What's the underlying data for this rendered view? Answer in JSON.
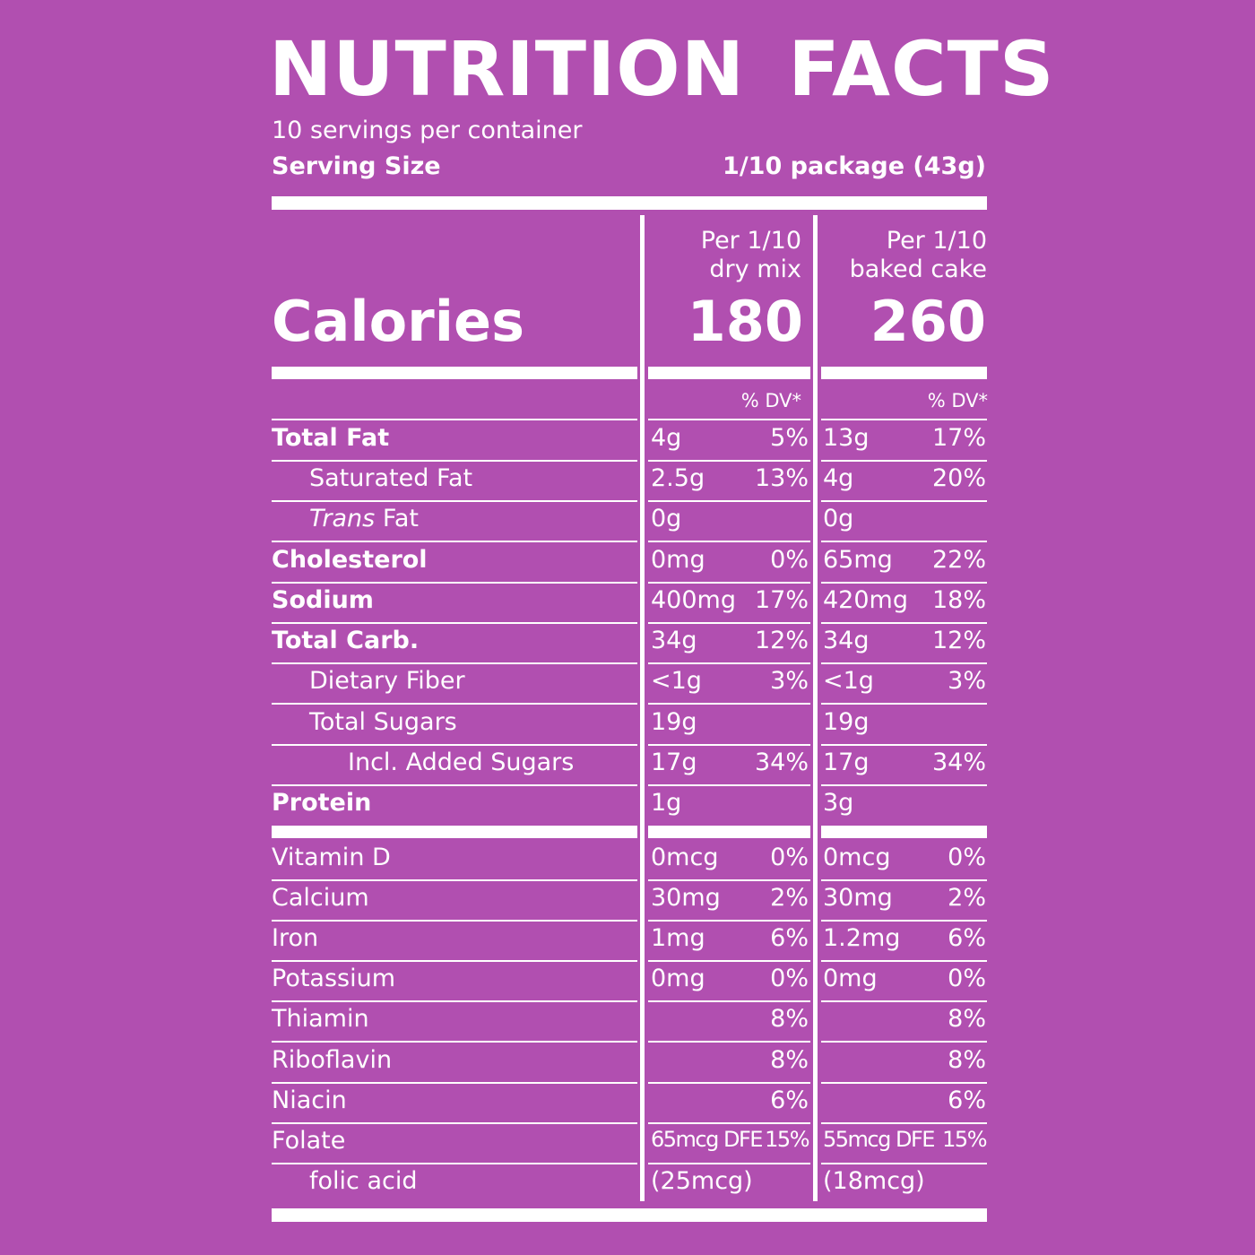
{
  "label": {
    "title": "NUTRITION FACTS",
    "servings": "10 servings per container",
    "serving_size_label": "Serving Size",
    "serving_size_value": "1/10 package (43g)",
    "col1_header_line1": "Per 1/10",
    "col1_header_line2": "dry mix",
    "col2_header_line1": "Per 1/10",
    "col2_header_line2": "baked cake",
    "calories_label": "Calories",
    "calories_dry": "180",
    "calories_baked": "260",
    "dv_header": "% DV*"
  },
  "rows": [
    {
      "name": "Total Fat",
      "dry": "4g",
      "dry_dv": "5%",
      "baked": "13g",
      "baked_dv": "17%"
    },
    {
      "name": "Saturated Fat",
      "dry": "2.5g",
      "dry_dv": "13%",
      "baked": "4g",
      "baked_dv": "20%"
    },
    {
      "name_italic": "Trans",
      "name": " Fat",
      "dry": "0g",
      "dry_dv": "",
      "baked": "0g",
      "baked_dv": ""
    },
    {
      "name": "Cholesterol",
      "dry": "0mg",
      "dry_dv": "0%",
      "baked": "65mg",
      "baked_dv": "22%"
    },
    {
      "name": "Sodium",
      "dry": "400mg",
      "dry_dv": "17%",
      "baked": "420mg",
      "baked_dv": "18%"
    },
    {
      "name": "Total Carb.",
      "dry": "34g",
      "dry_dv": "12%",
      "baked": "34g",
      "baked_dv": "12%"
    },
    {
      "name": "Dietary Fiber",
      "dry": "<1g",
      "dry_dv": "3%",
      "baked": "<1g",
      "baked_dv": "3%"
    },
    {
      "name": "Total Sugars",
      "dry": "19g",
      "dry_dv": "",
      "baked": "19g",
      "baked_dv": ""
    },
    {
      "name": "Incl. Added Sugars",
      "dry": "17g",
      "dry_dv": "34%",
      "baked": "17g",
      "baked_dv": "34%"
    },
    {
      "name": "Protein",
      "dry": "1g",
      "dry_dv": "",
      "baked": "3g",
      "baked_dv": ""
    },
    {
      "name": "Vitamin D",
      "dry": "0mcg",
      "dry_dv": "0%",
      "baked": "0mcg",
      "baked_dv": "0%"
    },
    {
      "name": "Calcium",
      "dry": "30mg",
      "dry_dv": "2%",
      "baked": "30mg",
      "baked_dv": "2%"
    },
    {
      "name": "Iron",
      "dry": "1mg",
      "dry_dv": "6%",
      "baked": "1.2mg",
      "baked_dv": "6%"
    },
    {
      "name": "Potassium",
      "dry": "0mg",
      "dry_dv": "0%",
      "baked": "0mg",
      "baked_dv": "0%"
    },
    {
      "name": "Thiamin",
      "dry": "",
      "dry_dv": "8%",
      "baked": "",
      "baked_dv": "8%"
    },
    {
      "name": "Riboflavin",
      "dry": "",
      "dry_dv": "8%",
      "baked": "",
      "baked_dv": "8%"
    },
    {
      "name": "Niacin",
      "dry": "",
      "dry_dv": "6%",
      "baked": "",
      "baked_dv": "6%"
    },
    {
      "name": "Folate",
      "dry": "65mcg DFE",
      "dry_dv": "15%",
      "baked": "55mcg DFE",
      "baked_dv": "15%"
    },
    {
      "name": "folic acid",
      "dry": "(25mcg)",
      "dry_dv": "",
      "baked": "(18mcg)",
      "baked_dv": ""
    }
  ],
  "colors": {
    "background": "#B14FB0",
    "foreground": "#FFFFFF"
  }
}
